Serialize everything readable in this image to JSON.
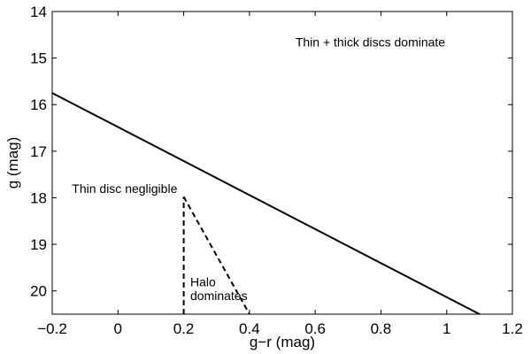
{
  "chart_data": {
    "type": "line",
    "title": "",
    "xlabel": "g−r (mag)",
    "ylabel": "g (mag)",
    "xlim": [
      -0.2,
      1.2
    ],
    "ylim": [
      20.5,
      14
    ],
    "y_inverted": true,
    "grid": false,
    "x_ticks": [
      -0.2,
      0,
      0.2,
      0.4,
      0.6,
      0.8,
      1,
      1.2
    ],
    "x_tick_labels": [
      "−0.2",
      "0",
      "0.2",
      "0.4",
      "0.6",
      "0.8",
      "1",
      "1.2"
    ],
    "y_ticks": [
      14,
      15,
      16,
      17,
      18,
      19,
      20
    ],
    "y_tick_labels": [
      "14",
      "15",
      "16",
      "17",
      "18",
      "19",
      "20"
    ],
    "series": [
      {
        "style": "solid",
        "color": "#000000",
        "x": [
          -0.2,
          1.1
        ],
        "y": [
          15.75,
          20.5
        ]
      },
      {
        "style": "dashed",
        "color": "#000000",
        "x": [
          0.2,
          0.2
        ],
        "y": [
          20.5,
          17.98
        ]
      },
      {
        "style": "dashed",
        "color": "#000000",
        "x": [
          0.2,
          0.4
        ],
        "y": [
          17.98,
          20.5
        ]
      }
    ],
    "annotations": [
      {
        "text": "Thin + thick discs dominate",
        "x": 0.54,
        "y": 14.75
      },
      {
        "text": "Thin disc negligible",
        "x": -0.14,
        "y": 17.9
      },
      {
        "text": "Halo",
        "x": 0.22,
        "y": 19.9
      },
      {
        "text": "dominates",
        "x": 0.22,
        "y": 20.2
      }
    ]
  }
}
